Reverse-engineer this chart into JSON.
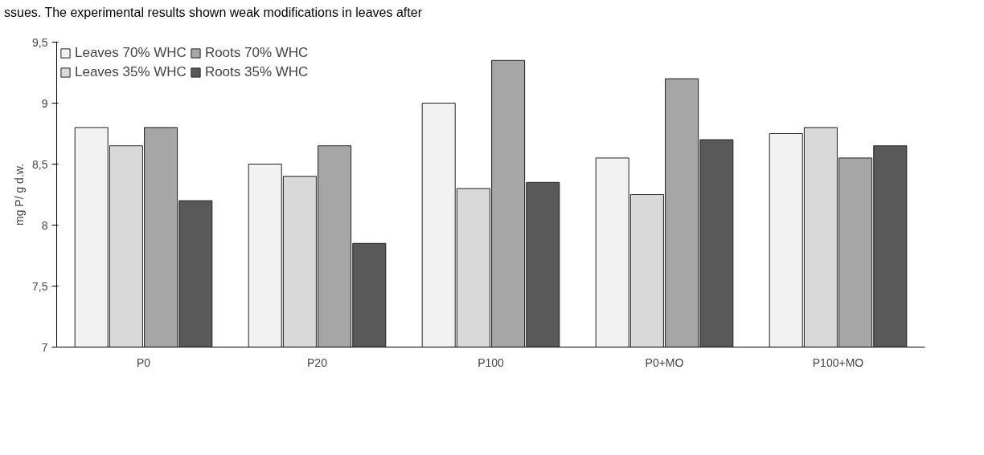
{
  "chart_data": {
    "type": "bar",
    "categories": [
      "P0",
      "P20",
      "P100",
      "P0+MO",
      "P100+MO"
    ],
    "ylabel": "mg P/ g d.w.",
    "annotations": [
      "ssues. The experimental results shown weak modifications in leaves after"
    ],
    "series": [
      {
        "name": "Leaves 70% WHC",
        "color": "#f2f2f2",
        "values": [
          8.8,
          8.5,
          9.0,
          8.55,
          8.75
        ]
      },
      {
        "name": "Leaves 35% WHC",
        "color": "#d9d9d9",
        "values": [
          8.65,
          8.4,
          8.3,
          8.25,
          8.8
        ]
      },
      {
        "name": "Roots 70% WHC",
        "color": "#a6a6a6",
        "values": [
          8.8,
          8.65,
          9.35,
          9.2,
          8.55
        ]
      },
      {
        "name": "Roots 35% WHC",
        "color": "#595959",
        "values": [
          8.2,
          7.85,
          8.35,
          8.7,
          8.65
        ]
      }
    ],
    "ylim": [
      7,
      9.5
    ],
    "yticks": [
      {
        "value": 7,
        "label": "7"
      },
      {
        "value": 7.5,
        "label": "7,5"
      },
      {
        "value": 8,
        "label": "8"
      },
      {
        "value": 8.5,
        "label": "8,5"
      },
      {
        "value": 9,
        "label": "9"
      },
      {
        "value": 9.5,
        "label": "9,5"
      }
    ],
    "legend": "top left",
    "grid": false
  }
}
